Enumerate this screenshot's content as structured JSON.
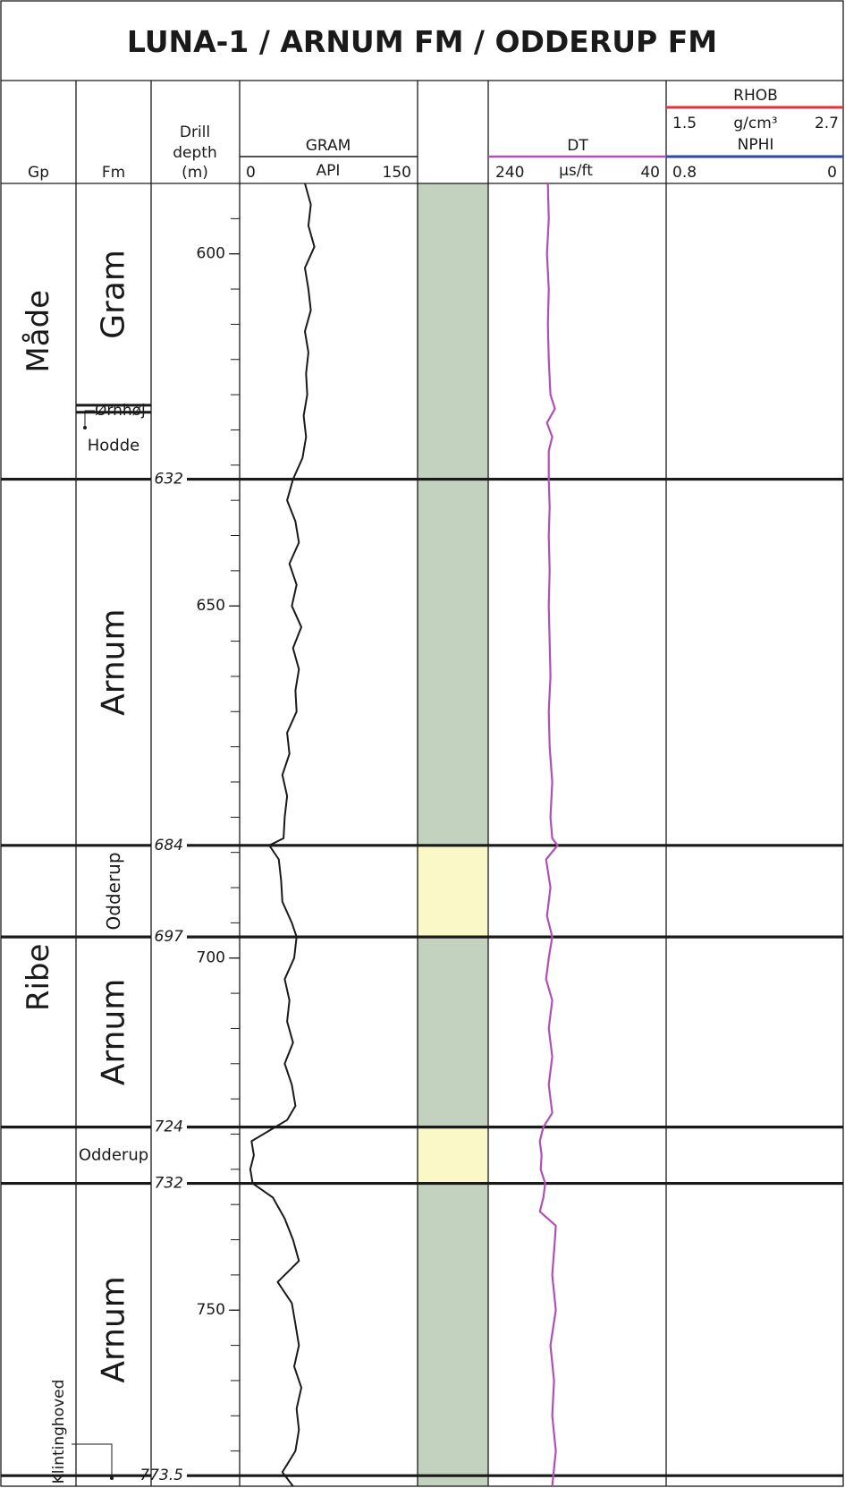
{
  "title": "LUNA-1 / ARNUM FM / ODDERUP FM",
  "headers": {
    "gp": "Gp",
    "fm": "Fm",
    "depth_line1": "Drill",
    "depth_line2": "depth",
    "depth_line3": "(m)",
    "gram_name": "GRAM",
    "gram_unit": "API",
    "gram_min": "0",
    "gram_max": "150",
    "dt_name": "DT",
    "dt_unit": "µs/ft",
    "dt_min": "240",
    "dt_max": "40",
    "rhob_name": "RHOB",
    "rhob_unit": "g/cm³",
    "rhob_min": "1.5",
    "rhob_max": "2.7",
    "nphi_name": "NPHI",
    "nphi_min": "0.8",
    "nphi_max": "0"
  },
  "colors": {
    "frame": "#1a1a1a",
    "gram_curve": "#1a1a1a",
    "dt_curve": "#b04fb8",
    "rhob_line": "#e0303a",
    "nphi_line": "#2a4aa8",
    "shale_fill": "#c2d2bf",
    "sand_fill": "#fbf8c8"
  },
  "groups": [
    {
      "name": "Måde",
      "top": 590,
      "base": 632
    },
    {
      "name": "Ribe",
      "top": 632,
      "base": 773.5
    }
  ],
  "formations": [
    {
      "name": "Gram",
      "top": 590,
      "base": 621.5,
      "vertical": true
    },
    {
      "name": "Ørnhøj",
      "top": 621.5,
      "base": 622.5,
      "vertical": false
    },
    {
      "name": "Hodde",
      "top": 622.5,
      "base": 632,
      "vertical": false
    },
    {
      "name": "Arnum",
      "top": 632,
      "base": 684,
      "vertical": true
    },
    {
      "name": "Odderup",
      "top": 684,
      "base": 697,
      "vertical": true
    },
    {
      "name": "Arnum",
      "top": 697,
      "base": 724,
      "vertical": true
    },
    {
      "name": "Odderup",
      "top": 724,
      "base": 732,
      "vertical": false
    },
    {
      "name": "Arnum",
      "top": 732,
      "base": 773.5,
      "vertical": true
    },
    {
      "name": "Klintinghoved",
      "top": 773.5,
      "base": 775,
      "vertical": true
    }
  ],
  "boundaries": [
    {
      "depth": 632,
      "label": "632"
    },
    {
      "depth": 684,
      "label": "684"
    },
    {
      "depth": 697,
      "label": "697"
    },
    {
      "depth": 724,
      "label": "724"
    },
    {
      "depth": 732,
      "label": "732"
    },
    {
      "depth": 773.5,
      "label": "773.5"
    }
  ],
  "depth_ticks": [
    {
      "depth": 600,
      "label": "600"
    },
    {
      "depth": 650,
      "label": "650"
    },
    {
      "depth": 700,
      "label": "700"
    },
    {
      "depth": 750,
      "label": "750"
    }
  ],
  "lithology": [
    {
      "top": 590,
      "base": 684,
      "type": "shale"
    },
    {
      "top": 684,
      "base": 697,
      "type": "sand"
    },
    {
      "top": 697,
      "base": 724,
      "type": "shale"
    },
    {
      "top": 724,
      "base": 732,
      "type": "sand"
    },
    {
      "top": 732,
      "base": 775,
      "type": "shale"
    }
  ],
  "chart_data": {
    "type": "line",
    "title": "LUNA-1 / ARNUM FM / ODDERUP FM",
    "y_axis": {
      "label": "Drill depth (m)",
      "range": [
        590,
        775
      ],
      "inverted": true
    },
    "series": [
      {
        "name": "GRAM",
        "unit": "API",
        "xlim": [
          0,
          150
        ],
        "depth": [
          590,
          593,
          596,
          599,
          602,
          605,
          608,
          611,
          614,
          617,
          620,
          623,
          626,
          629,
          632,
          635,
          638,
          641,
          644,
          647,
          650,
          653,
          656,
          659,
          662,
          665,
          668,
          671,
          674,
          677,
          680,
          683,
          684,
          686,
          689,
          692,
          695,
          697,
          700,
          703,
          706,
          709,
          712,
          715,
          718,
          721,
          723,
          724,
          726,
          728,
          730,
          732,
          734,
          737,
          740,
          743,
          746,
          749,
          752,
          755,
          758,
          761,
          764,
          767,
          770,
          773,
          775
        ],
        "values": [
          55,
          60,
          58,
          63,
          55,
          58,
          60,
          55,
          58,
          56,
          57,
          54,
          56,
          53,
          45,
          40,
          47,
          50,
          42,
          48,
          44,
          52,
          45,
          50,
          47,
          48,
          40,
          42,
          36,
          40,
          38,
          37,
          25,
          33,
          35,
          36,
          44,
          48,
          46,
          38,
          42,
          40,
          45,
          38,
          44,
          47,
          40,
          30,
          10,
          12,
          9,
          11,
          28,
          38,
          45,
          50,
          32,
          44,
          47,
          50,
          46,
          52,
          48,
          50,
          47,
          36,
          45
        ]
      },
      {
        "name": "DT",
        "unit": "µs/ft",
        "xlim": [
          240,
          40
        ],
        "depth": [
          590,
          595,
          600,
          605,
          610,
          615,
          620,
          622,
          624,
          626,
          628,
          632,
          636,
          640,
          645,
          650,
          655,
          660,
          665,
          670,
          675,
          680,
          683,
          684,
          686,
          690,
          694,
          697,
          700,
          703,
          706,
          710,
          714,
          718,
          722,
          724,
          726,
          728,
          730,
          732,
          734,
          736,
          738,
          740,
          745,
          750,
          755,
          760,
          765,
          770,
          775
        ],
        "values": [
          173,
          172,
          174,
          172,
          173,
          172,
          170,
          165,
          174,
          168,
          172,
          172,
          171,
          172,
          171,
          172,
          171,
          170,
          172,
          171,
          168,
          170,
          168,
          162,
          175,
          170,
          174,
          168,
          172,
          175,
          168,
          172,
          168,
          172,
          168,
          178,
          182,
          180,
          181,
          176,
          178,
          182,
          164,
          165,
          168,
          164,
          170,
          166,
          168,
          164,
          168
        ]
      }
    ],
    "empty_tracks": [
      "RHOB",
      "NPHI"
    ]
  }
}
